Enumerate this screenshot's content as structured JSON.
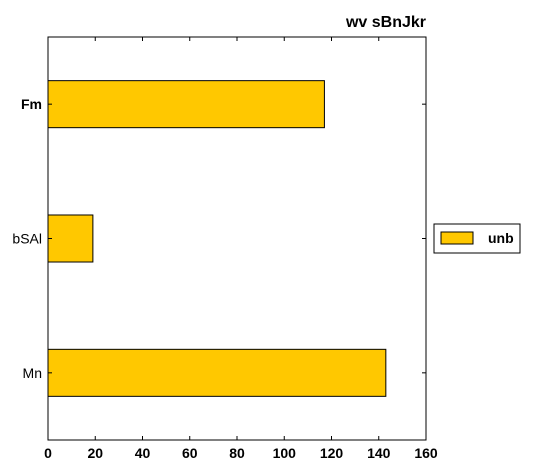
{
  "chart_data": {
    "type": "bar",
    "orientation": "horizontal",
    "title": "wv sBnJkr",
    "xlabel": "",
    "ylabel": "",
    "categories": [
      "Fm",
      "bSAl",
      "Mn"
    ],
    "bold_categories": [
      "Fm"
    ],
    "series": [
      {
        "name": "unb",
        "color": "#ffc800",
        "values": [
          117,
          19,
          143
        ]
      }
    ],
    "xlim": [
      0,
      160
    ],
    "xticks": [
      0,
      20,
      40,
      60,
      80,
      100,
      120,
      140,
      160
    ],
    "grid": false,
    "legend_position": "center-right"
  }
}
